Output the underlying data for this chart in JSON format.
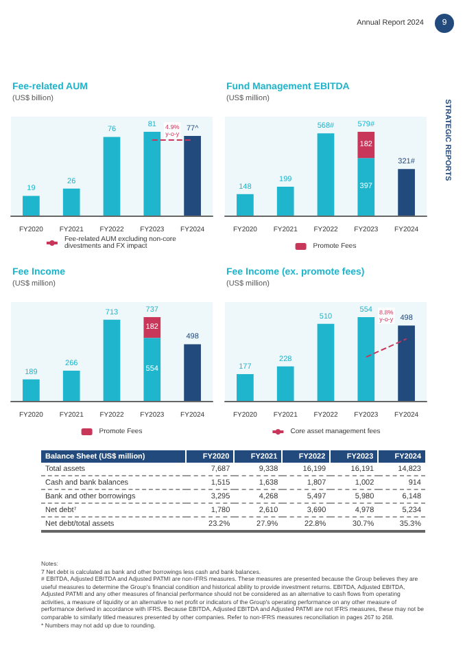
{
  "chart_data": [
    {
      "type": "bar",
      "title": "Fee-related AUM",
      "subtitle": "(US$ billion)",
      "categories": [
        "FY2020",
        "FY2021",
        "FY2022",
        "FY2023",
        "FY2024"
      ],
      "legend": "bottom",
      "series": [
        {
          "color": "#1fb5cc",
          "colors": [
            "#1fb5cc",
            "#1fb5cc",
            "#1fb5cc",
            "#1fb5cc",
            "#234a7c"
          ],
          "values": [
            19,
            26,
            76,
            81,
            77
          ],
          "value_labels": [
            "19",
            "26",
            "76",
            "81",
            "77^"
          ]
        },
        {
          "type": "line",
          "name": "Fee-related AUM excluding non-core divestments and FX impact",
          "color": "#c8375a",
          "line_style": "dashed",
          "marker": "none",
          "values": [
            null,
            null,
            null,
            73,
            73
          ]
        }
      ],
      "annotations": [
        "4.9% y-o-y"
      ]
    },
    {
      "type": "bar",
      "title": "Fund Management EBITDA",
      "subtitle": "(US$ million)",
      "categories": [
        "FY2020",
        "FY2021",
        "FY2022",
        "FY2023",
        "FY2024"
      ],
      "legend": "bottom",
      "stacked": true,
      "series": [
        {
          "color": "#1fb5cc",
          "colors": [
            "#1fb5cc",
            "#1fb5cc",
            "#1fb5cc",
            "#1fb5cc",
            "#234a7c"
          ],
          "values": [
            148,
            199,
            568,
            397,
            321
          ],
          "value_labels": [
            "148",
            "199",
            "568#",
            "397",
            "321#"
          ]
        },
        {
          "name": "Promote Fees",
          "color": "#c8375a",
          "values": [
            null,
            null,
            null,
            182,
            null
          ],
          "value_labels": [
            null,
            null,
            null,
            "182",
            null
          ]
        }
      ],
      "totals": [
        null,
        null,
        null,
        "579#",
        null
      ]
    },
    {
      "type": "bar",
      "title": "Fee Income",
      "subtitle": "(US$ million)",
      "categories": [
        "FY2020",
        "FY2021",
        "FY2022",
        "FY2023",
        "FY2024"
      ],
      "legend": "bottom",
      "stacked": true,
      "series": [
        {
          "color": "#1fb5cc",
          "colors": [
            "#1fb5cc",
            "#1fb5cc",
            "#1fb5cc",
            "#1fb5cc",
            "#234a7c"
          ],
          "values": [
            189,
            266,
            713,
            554,
            498
          ],
          "value_labels": [
            "189",
            "266",
            "713",
            "554",
            "498"
          ]
        },
        {
          "name": "Promote Fees",
          "color": "#c8375a",
          "values": [
            null,
            null,
            null,
            182,
            null
          ],
          "value_labels": [
            null,
            null,
            null,
            "182",
            null
          ]
        }
      ],
      "totals": [
        null,
        null,
        null,
        "737",
        null
      ]
    },
    {
      "type": "bar",
      "title": "Fee Income (ex. promote fees)",
      "subtitle": "(US$ million)",
      "categories": [
        "FY2020",
        "FY2021",
        "FY2022",
        "FY2023",
        "FY2024"
      ],
      "legend": "bottom",
      "series": [
        {
          "color": "#1fb5cc",
          "colors": [
            "#1fb5cc",
            "#1fb5cc",
            "#1fb5cc",
            "#1fb5cc",
            "#234a7c"
          ],
          "values": [
            177,
            228,
            510,
            554,
            498
          ],
          "value_labels": [
            "177",
            "228",
            "510",
            "554",
            "498"
          ]
        },
        {
          "type": "line",
          "name": "Core asset management fees",
          "color": "#c8375a",
          "line_style": "dashed",
          "marker": "none",
          "values": [
            null,
            null,
            null,
            290,
            410
          ]
        }
      ],
      "annotations": [
        "8.8% y-o-y"
      ]
    },
    {
      "type": "other",
      "title": "Balance Sheet (US$ million)",
      "categories": [
        "FY2020",
        "FY2021",
        "FY2022",
        "FY2023",
        "FY2024"
      ],
      "y_categories": [
        "Total assets",
        "Cash and bank balances",
        "Bank and other borrowings",
        "Net debt⁷",
        "Net debt/total assets"
      ],
      "cell_labels": [
        [
          "7,687",
          "9,338",
          "16,199",
          "16,191",
          "14,823"
        ],
        [
          "1,515",
          "1,638",
          "1,807",
          "1,002",
          "914"
        ],
        [
          "3,295",
          "4,268",
          "5,497",
          "5,980",
          "6,148"
        ],
        [
          "1,780",
          "2,610",
          "3,690",
          "4,978",
          "5,234"
        ],
        [
          "23.2%",
          "27.9%",
          "22.8%",
          "30.7%",
          "35.3%"
        ]
      ],
      "annotations": [
        "Notes:",
        "7 Net debt is calculated as bank and other borrowings less cash and bank balances.",
        "# EBITDA, Adjusted EBITDA and Adjusted PATMI are non-IFRS measures. These measures are presented because the Group believes they are useful measures to determine the Group's financial condition and historical ability to provide investment returns. EBITDA, Adjusted EBITDA, Adjusted PATMI and any other measures of financial performance should not be considered as an alternative to cash flows from operating activities, a measure of liquidity or an alternative to net profit or indicators of the Group's operating performance on any other measure of performance derived in accordance with IFRS. Because EBITDA, Adjusted EBITDA and Adjusted PATMI are not IFRS measures, these may not be comparable to similarly titled measures presented by other companies. Refer to non-IFRS measures reconciliation in pages 267 to 268.",
        "* Numbers may not add up due to rounding."
      ]
    },
    {
      "type": "other",
      "annotations": [
        "Annual Report 2024",
        "9",
        "STRATEGIC REPORTS"
      ]
    }
  ]
}
